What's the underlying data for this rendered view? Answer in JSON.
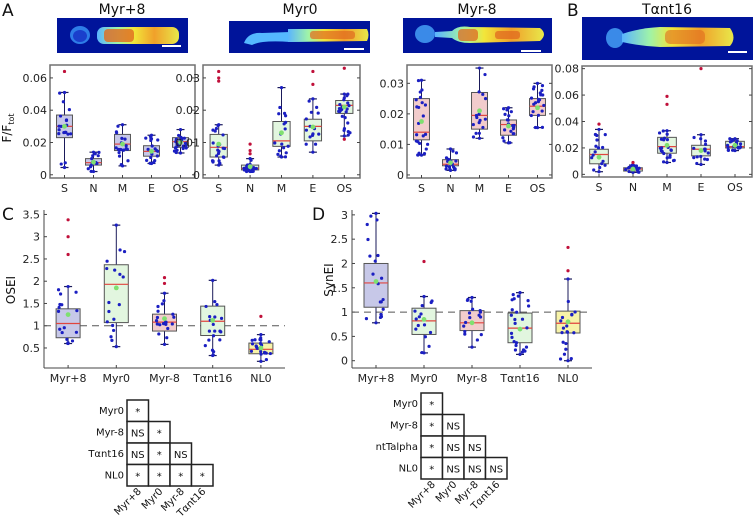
{
  "panel_letters": {
    "A": "A",
    "B": "B",
    "C": "C",
    "D": "D"
  },
  "colors": {
    "box_blue": "#c7c8e8",
    "box_green": "#e2f6df",
    "box_pink": "#f2cccc",
    "box_yellow": "#f7f3a8",
    "point": "#1b1fc2",
    "mean": "#7fe070",
    "median": "#e0453f",
    "outlier": "#c0103a",
    "axis": "#707070",
    "cell_bg": "#00149a"
  },
  "chart_data": [
    {
      "id": "A1",
      "type": "box",
      "title": "Myr+8",
      "ylabel": "F/F",
      "ylabel_sub": "tot",
      "categories": [
        "S",
        "N",
        "M",
        "E",
        "OS"
      ],
      "ylim": [
        -0.002,
        0.068
      ],
      "yticks": [
        0,
        0.02,
        0.04,
        0.06
      ],
      "ytick_labels": [
        "0",
        "0.02",
        "0.04",
        "0.06"
      ],
      "fill": "box_blue",
      "boxes": [
        {
          "q1": 0.023,
          "median": 0.03,
          "q3": 0.037,
          "lo": 0.0045,
          "hi": 0.051,
          "mean": 0.03,
          "outliers": [
            0.064
          ]
        },
        {
          "q1": 0.006,
          "median": 0.0075,
          "q3": 0.01,
          "lo": 0.002,
          "hi": 0.014,
          "mean": 0.0078,
          "outliers": []
        },
        {
          "q1": 0.015,
          "median": 0.019,
          "q3": 0.025,
          "lo": 0.0055,
          "hi": 0.031,
          "mean": 0.019,
          "outliers": []
        },
        {
          "q1": 0.0115,
          "median": 0.0145,
          "q3": 0.018,
          "lo": 0.007,
          "hi": 0.0245,
          "mean": 0.0145,
          "outliers": []
        },
        {
          "q1": 0.017,
          "median": 0.0205,
          "q3": 0.023,
          "lo": 0.0135,
          "hi": 0.028,
          "mean": 0.02,
          "outliers": []
        }
      ]
    },
    {
      "id": "A2",
      "type": "box",
      "title": "Myr0",
      "categories": [
        "S",
        "N",
        "M",
        "E",
        "OS"
      ],
      "ylim": [
        -0.001,
        0.034
      ],
      "yticks": [
        0,
        0.01,
        0.02,
        0.03
      ],
      "ytick_labels": [
        "0",
        "0.01",
        "0.02",
        "0.03"
      ],
      "fill": "box_green",
      "boxes": [
        {
          "q1": 0.0055,
          "median": 0.0085,
          "q3": 0.0125,
          "lo": 0.003,
          "hi": 0.0155,
          "mean": 0.0095,
          "outliers": [
            0.029,
            0.03,
            0.032
          ]
        },
        {
          "q1": 0.0015,
          "median": 0.002,
          "q3": 0.003,
          "lo": 0.001,
          "hi": 0.005,
          "mean": 0.0025,
          "outliers": [
            0.0065,
            0.0075,
            0.0095
          ]
        },
        {
          "q1": 0.0088,
          "median": 0.0105,
          "q3": 0.0165,
          "lo": 0.0055,
          "hi": 0.027,
          "mean": 0.013,
          "outliers": []
        },
        {
          "q1": 0.0105,
          "median": 0.015,
          "q3": 0.0172,
          "lo": 0.007,
          "hi": 0.0235,
          "mean": 0.0148,
          "outliers": [
            0.028,
            0.032
          ]
        },
        {
          "q1": 0.019,
          "median": 0.0215,
          "q3": 0.023,
          "lo": 0.012,
          "hi": 0.025,
          "mean": 0.021,
          "outliers": [
            0.011,
            0.033
          ]
        }
      ]
    },
    {
      "id": "A3",
      "type": "box",
      "title": "Myr-8",
      "categories": [
        "S",
        "N",
        "M",
        "E",
        "OS"
      ],
      "ylim": [
        -0.001,
        0.036
      ],
      "yticks": [
        0,
        0.01,
        0.02,
        0.03
      ],
      "ytick_labels": [
        "0",
        "0.01",
        "0.02",
        "0.03"
      ],
      "fill": "box_pink",
      "boxes": [
        {
          "q1": 0.0115,
          "median": 0.014,
          "q3": 0.025,
          "lo": 0.0065,
          "hi": 0.031,
          "mean": 0.0175,
          "outliers": []
        },
        {
          "q1": 0.003,
          "median": 0.0035,
          "q3": 0.005,
          "lo": 0.0015,
          "hi": 0.0085,
          "mean": 0.004,
          "outliers": []
        },
        {
          "q1": 0.015,
          "median": 0.0195,
          "q3": 0.027,
          "lo": 0.012,
          "hi": 0.035,
          "mean": 0.021,
          "outliers": []
        },
        {
          "q1": 0.013,
          "median": 0.0165,
          "q3": 0.018,
          "lo": 0.0105,
          "hi": 0.022,
          "mean": 0.016,
          "outliers": []
        },
        {
          "q1": 0.0195,
          "median": 0.0225,
          "q3": 0.025,
          "lo": 0.0155,
          "hi": 0.03,
          "mean": 0.022,
          "outliers": []
        }
      ]
    },
    {
      "id": "B",
      "type": "box",
      "title": "Tαnt16",
      "categories": [
        "S",
        "N",
        "M",
        "E",
        "OS"
      ],
      "ylim": [
        -0.002,
        0.082
      ],
      "yticks": [
        0,
        0.02,
        0.04,
        0.06,
        0.08
      ],
      "ytick_labels": [
        "0",
        "0.02",
        "0.04",
        "0.06",
        "0.08"
      ],
      "fill": "box_green",
      "boxes": [
        {
          "q1": 0.008,
          "median": 0.015,
          "q3": 0.019,
          "lo": 0.002,
          "hi": 0.034,
          "mean": 0.013,
          "outliers": [
            0.038
          ]
        },
        {
          "q1": 0.0025,
          "median": 0.004,
          "q3": 0.005,
          "lo": 0.0015,
          "hi": 0.007,
          "mean": 0.004,
          "outliers": [
            0.009
          ]
        },
        {
          "q1": 0.016,
          "median": 0.021,
          "q3": 0.028,
          "lo": 0.009,
          "hi": 0.033,
          "mean": 0.022,
          "outliers": [
            0.053,
            0.059
          ]
        },
        {
          "q1": 0.014,
          "median": 0.019,
          "q3": 0.022,
          "lo": 0.0075,
          "hi": 0.03,
          "mean": 0.018,
          "outliers": [
            0.08
          ]
        },
        {
          "q1": 0.02,
          "median": 0.021,
          "q3": 0.025,
          "lo": 0.018,
          "hi": 0.027,
          "mean": 0.022,
          "outliers": []
        }
      ]
    },
    {
      "id": "C",
      "type": "box",
      "ylabel": "OSEI",
      "categories": [
        "Myr+8",
        "Myr0",
        "Myr-8",
        "Tαnt16",
        "NL0"
      ],
      "ylim": [
        0.05,
        3.6
      ],
      "yticks": [
        0.5,
        1,
        1.5,
        2,
        2.5,
        3,
        3.5
      ],
      "ytick_labels": [
        "0.5",
        "1",
        "1.5",
        "2",
        "2.5",
        "3",
        "3.5"
      ],
      "reference_line": 1,
      "boxes": [
        {
          "fill": "box_blue",
          "q1": 0.73,
          "median": 1.05,
          "q3": 1.38,
          "lo": 0.6,
          "hi": 1.88,
          "mean": 1.25,
          "outliers": [
            2.6,
            3.0,
            3.38
          ]
        },
        {
          "fill": "box_green",
          "q1": 1.07,
          "median": 1.93,
          "q3": 2.37,
          "lo": 0.53,
          "hi": 3.26,
          "mean": 1.85,
          "outliers": []
        },
        {
          "fill": "box_pink",
          "q1": 0.88,
          "median": 1.08,
          "q3": 1.26,
          "lo": 0.58,
          "hi": 1.73,
          "mean": 1.16,
          "outliers": [
            1.95,
            2.08
          ]
        },
        {
          "fill": "box_green",
          "q1": 0.78,
          "median": 1.1,
          "q3": 1.44,
          "lo": 0.33,
          "hi": 2.02,
          "mean": 1.12,
          "outliers": []
        },
        {
          "fill": "box_yellow",
          "q1": 0.37,
          "median": 0.47,
          "q3": 0.61,
          "lo": 0.2,
          "hi": 0.8,
          "mean": 0.5,
          "outliers": [
            1.21
          ]
        }
      ]
    },
    {
      "id": "D",
      "type": "box",
      "ylabel": "SynEI",
      "categories": [
        "Myr+8",
        "Myr0",
        "Myr-8",
        "Tαnt16",
        "NL0"
      ],
      "ylim": [
        -0.15,
        3.1
      ],
      "yticks": [
        0,
        0.5,
        1,
        1.5,
        2,
        2.5,
        3
      ],
      "ytick_labels": [
        "0",
        "0.5",
        "1",
        "1.5",
        "2",
        "2.5",
        "3"
      ],
      "reference_line": 1,
      "boxes": [
        {
          "fill": "box_blue",
          "q1": 1.1,
          "median": 1.6,
          "q3": 2.0,
          "lo": 0.78,
          "hi": 3.03,
          "mean": 1.63,
          "outliers": []
        },
        {
          "fill": "box_green",
          "q1": 0.54,
          "median": 0.82,
          "q3": 1.08,
          "lo": 0.16,
          "hi": 1.32,
          "mean": 0.85,
          "outliers": [
            2.04
          ]
        },
        {
          "fill": "box_pink",
          "q1": 0.62,
          "median": 0.78,
          "q3": 1.03,
          "lo": 0.28,
          "hi": 1.3,
          "mean": 0.78,
          "outliers": []
        },
        {
          "fill": "box_green",
          "q1": 0.37,
          "median": 0.67,
          "q3": 0.98,
          "lo": 0.13,
          "hi": 1.4,
          "mean": 0.65,
          "outliers": []
        },
        {
          "fill": "box_yellow",
          "q1": 0.57,
          "median": 0.77,
          "q3": 1.02,
          "lo": 0.0,
          "hi": 1.68,
          "mean": 0.8,
          "outliers": [
            1.85,
            2.33
          ]
        }
      ]
    }
  ],
  "matrices": [
    {
      "id": "C-matrix",
      "row_labels": [
        "Myr0",
        "Myr-8",
        "Tαnt16",
        "NL0"
      ],
      "col_labels": [
        "Myr+8",
        "Myr0",
        "Myr-8",
        "Tαnt16"
      ],
      "cells": [
        [
          "*"
        ],
        [
          "NS",
          "*"
        ],
        [
          "NS",
          "*",
          "NS"
        ],
        [
          "*",
          "*",
          "*",
          "*"
        ]
      ]
    },
    {
      "id": "D-matrix",
      "row_labels": [
        "Myr0",
        "Myr-8",
        "ntTalpha",
        "NL0"
      ],
      "col_labels": [
        "Myr+8",
        "Myr0",
        "Myr-8",
        "Tαnt16"
      ],
      "cells": [
        [
          "*"
        ],
        [
          "*",
          "NS"
        ],
        [
          "*",
          "NS",
          "NS"
        ],
        [
          "*",
          "NS",
          "NS",
          "NS"
        ]
      ]
    }
  ]
}
